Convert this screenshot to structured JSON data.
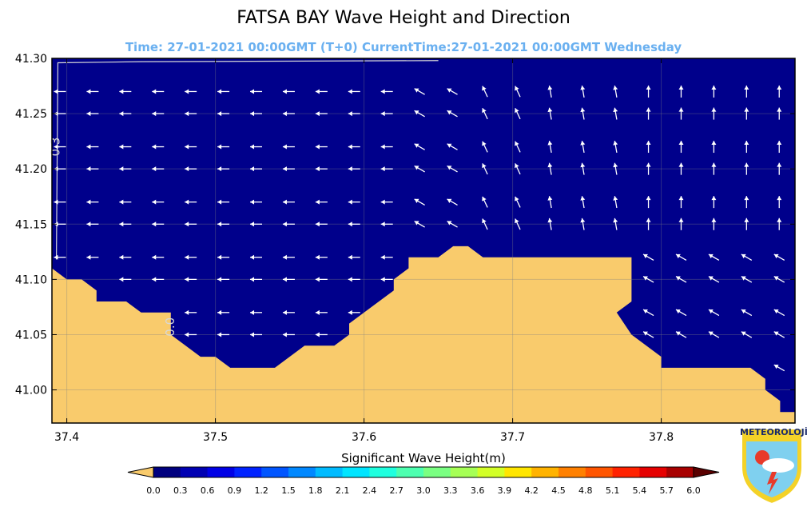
{
  "title": "FATSA BAY Wave Height and Direction",
  "subtitle": "Time: 27-01-2021 00:00GMT (T+0)  CurrentTime:27-01-2021 00:00GMT Wednesday",
  "colors": {
    "sea": "#00008b",
    "land": "#f9cb6c",
    "arrow": "#ffffff",
    "contour": "#d8d8d8",
    "subtitle": "#6ab0f0"
  },
  "logo": {
    "text": "METEOROLOJİ"
  },
  "chart_data": {
    "type": "heatmap",
    "title": "FATSA BAY Wave Height and Direction",
    "xlim": [
      37.39,
      37.89
    ],
    "ylim": [
      40.97,
      41.3
    ],
    "x_ticks": [
      "37.4",
      "37.5",
      "37.6",
      "37.7",
      "37.8"
    ],
    "y_ticks": [
      "41.30",
      "41.25",
      "41.20",
      "41.15",
      "41.10",
      "41.05",
      "41.00"
    ],
    "grid": true,
    "contours": [
      {
        "label": "0.3",
        "label_at": [
          37.393,
          41.22
        ]
      },
      {
        "label": "0.0",
        "label_at": [
          37.47,
          41.057
        ]
      }
    ],
    "value_field": "significant wave height approx 0.0-0.3 m everywhere on the sea",
    "coastline": [
      [
        37.39,
        41.11
      ],
      [
        37.4,
        41.1
      ],
      [
        37.41,
        41.1
      ],
      [
        37.42,
        41.09
      ],
      [
        37.42,
        41.08
      ],
      [
        37.44,
        41.08
      ],
      [
        37.45,
        41.07
      ],
      [
        37.47,
        41.07
      ],
      [
        37.47,
        41.05
      ],
      [
        37.49,
        41.03
      ],
      [
        37.5,
        41.03
      ],
      [
        37.51,
        41.02
      ],
      [
        37.54,
        41.02
      ],
      [
        37.56,
        41.04
      ],
      [
        37.58,
        41.04
      ],
      [
        37.59,
        41.05
      ],
      [
        37.59,
        41.06
      ],
      [
        37.62,
        41.09
      ],
      [
        37.62,
        41.1
      ],
      [
        37.63,
        41.11
      ],
      [
        37.63,
        41.12
      ],
      [
        37.65,
        41.12
      ],
      [
        37.66,
        41.13
      ],
      [
        37.67,
        41.13
      ],
      [
        37.68,
        41.12
      ],
      [
        37.78,
        41.12
      ],
      [
        37.78,
        41.08
      ],
      [
        37.77,
        41.07
      ],
      [
        37.78,
        41.05
      ],
      [
        37.8,
        41.03
      ],
      [
        37.8,
        41.02
      ],
      [
        37.86,
        41.02
      ],
      [
        37.87,
        41.01
      ],
      [
        37.87,
        41.0
      ],
      [
        37.88,
        40.99
      ],
      [
        37.88,
        40.98
      ],
      [
        37.89,
        40.98
      ]
    ],
    "arrow_rows": [
      41.27,
      41.25,
      41.22,
      41.2,
      41.17,
      41.15,
      41.12,
      41.1,
      41.07,
      41.05,
      41.02
    ],
    "arrow_direction_deg_cw_from_north": [
      {
        "lon_max": 37.63,
        "dir": 270
      },
      {
        "lon_max": 37.655,
        "dir": 300
      },
      {
        "lon_max": 37.67,
        "dir": 320
      },
      {
        "lon_max": 37.715,
        "dir": 335
      },
      {
        "lon_max": 37.765,
        "dir": 350
      },
      {
        "lon_max": 37.9,
        "dir": 0
      }
    ],
    "lower_right_direction": [
      {
        "lat_max": 41.125,
        "lon_min": 37.7,
        "dir": 300
      },
      {
        "lat_max": 41.085,
        "lon_min": 37.77,
        "dir": 280
      }
    ],
    "colorbar": {
      "label": "Significant Wave Height(m)",
      "ticks": [
        "0.0",
        "0.3",
        "0.6",
        "0.9",
        "1.2",
        "1.5",
        "1.8",
        "2.1",
        "2.4",
        "2.7",
        "3.0",
        "3.3",
        "3.6",
        "3.9",
        "4.2",
        "4.5",
        "4.8",
        "5.1",
        "5.4",
        "5.7",
        "6.0"
      ],
      "under_color": "#f9cb6c",
      "over_color": "#5a0000",
      "colors": [
        "#00007f",
        "#0000b3",
        "#0000e6",
        "#0022ff",
        "#0055ff",
        "#0088ff",
        "#00bbff",
        "#00e5ff",
        "#1fffdf",
        "#4dffb0",
        "#7aff82",
        "#a6ff55",
        "#d3ff27",
        "#ffe600",
        "#ffb300",
        "#ff8000",
        "#ff5500",
        "#ff2200",
        "#e60000",
        "#a80000"
      ]
    }
  }
}
